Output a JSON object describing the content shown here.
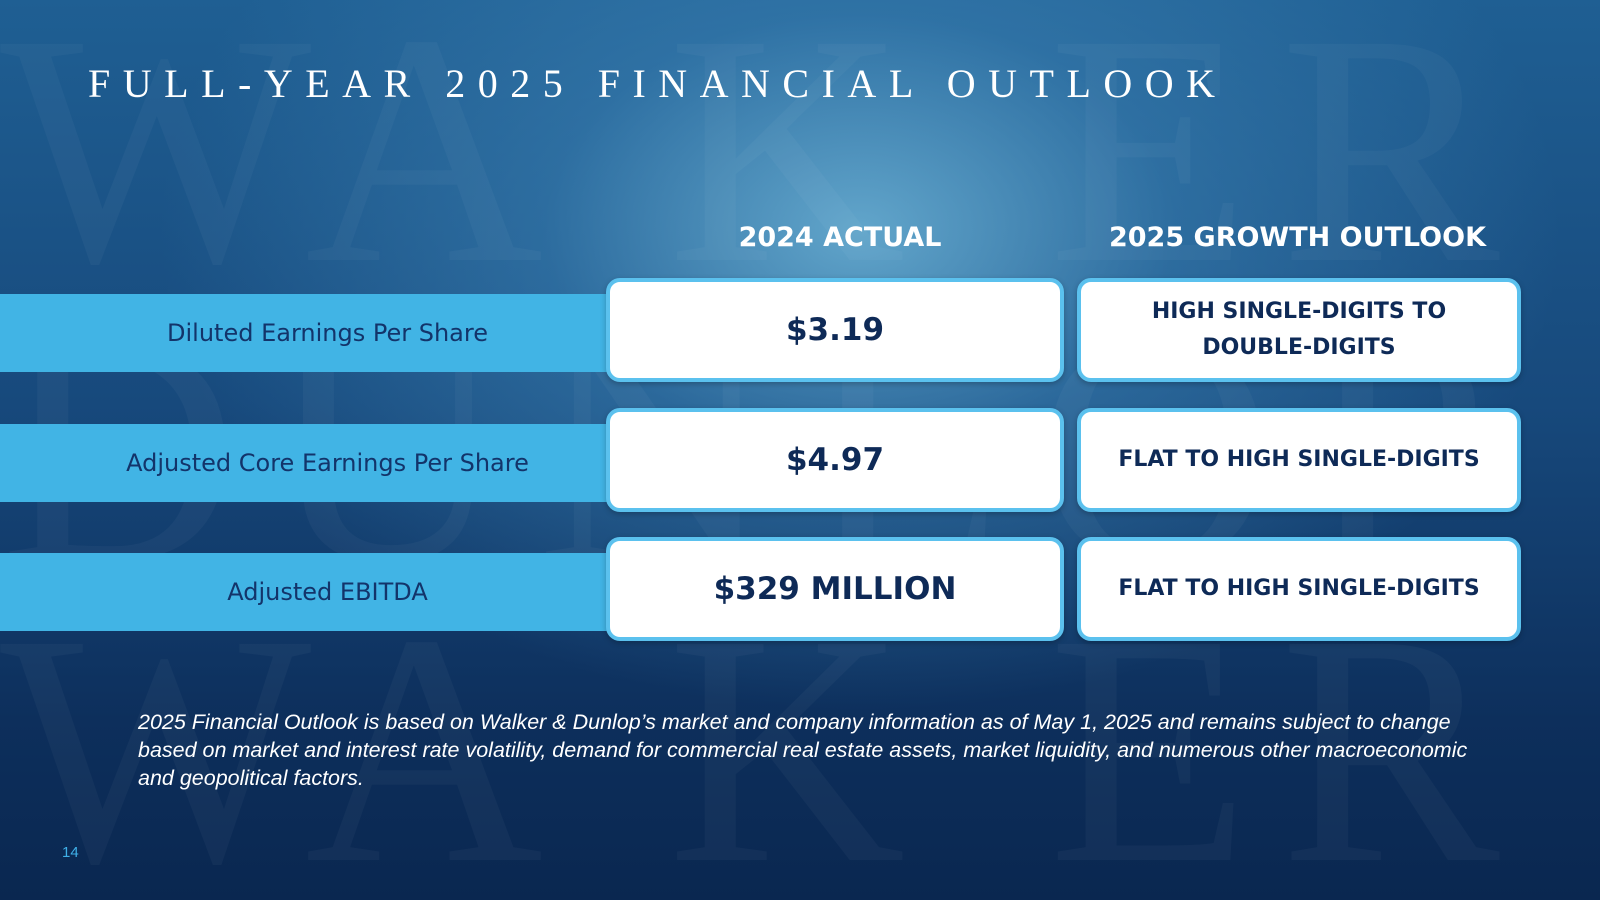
{
  "slide": {
    "title": "FULL-YEAR 2025 FINANCIAL OUTLOOK",
    "page_number": "14"
  },
  "columns": {
    "actual_header": "2024 ACTUAL",
    "outlook_header": "2025 GROWTH OUTLOOK"
  },
  "rows": [
    {
      "metric": "Diluted Earnings Per Share",
      "actual": "$3.19",
      "outlook": "HIGH SINGLE-DIGITS TO DOUBLE-DIGITS"
    },
    {
      "metric": "Adjusted Core Earnings Per Share",
      "actual": "$4.97",
      "outlook": "FLAT TO HIGH SINGLE-DIGITS"
    },
    {
      "metric": "Adjusted EBITDA",
      "actual": "$329 MILLION",
      "outlook": "FLAT TO HIGH SINGLE-DIGITS"
    }
  ],
  "footnote": "2025 Financial Outlook is based on Walker & Dunlop’s market and company information as of May 1, 2025 and remains subject to change based on market and interest rate volatility, demand for commercial real estate assets, market liquidity, and numerous other macroeconomic and geopolitical factors.",
  "colors": {
    "arrow_fill": "#41b4e5",
    "box_border": "#5bc1ee",
    "value_text": "#0e2a57",
    "label_text": "#13346a",
    "page_number": "#3fb0e8"
  }
}
